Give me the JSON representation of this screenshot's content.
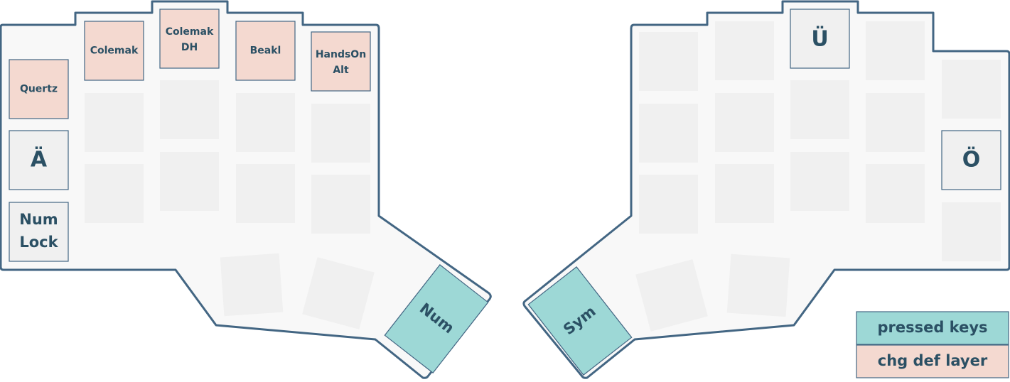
{
  "keys": {
    "quertz": [
      "Quertz"
    ],
    "colemak": [
      "Colemak"
    ],
    "colemak_dh": [
      "Colemak",
      "DH"
    ],
    "beakl": [
      "Beakl"
    ],
    "handson_alt": [
      "HandsOn",
      "Alt"
    ],
    "a_umlaut": [
      "Ä"
    ],
    "num_lock": [
      "Num",
      "Lock"
    ],
    "num": [
      "Num"
    ],
    "sym": [
      "Sym"
    ],
    "u_umlaut": [
      "Ü"
    ],
    "o_umlaut": [
      "Ö"
    ]
  },
  "legend": {
    "pressed": "pressed keys",
    "chg_def": "chg def layer"
  },
  "colors": {
    "outline": "#436683",
    "board": "#f8f8f8",
    "key": "#f0f0f0",
    "pressed": "#9dd8d6",
    "chg_def_layer": "#f4d9d0",
    "text": "#2b5064"
  }
}
